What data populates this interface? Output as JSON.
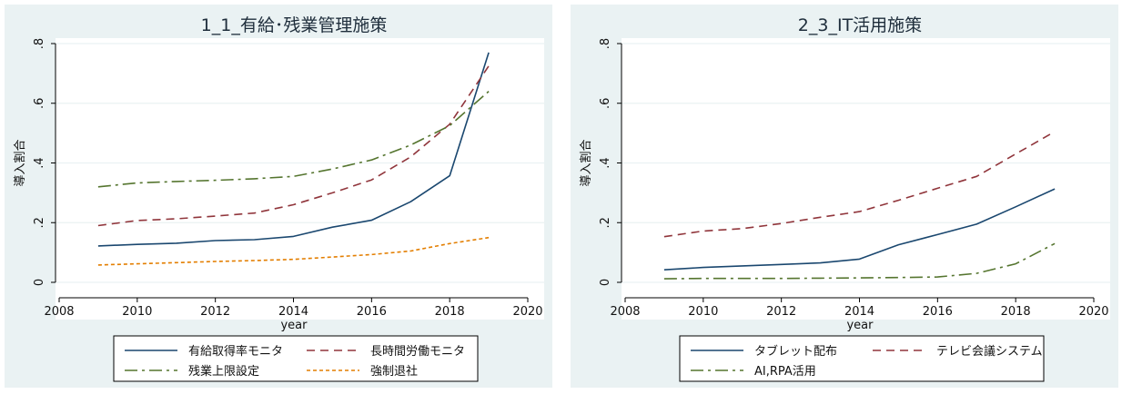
{
  "chart_data": [
    {
      "type": "line",
      "title": "1_1_有給･残業管理施策",
      "xlabel": "year",
      "ylabel": "導入割合",
      "xlim": [
        2008,
        2020
      ],
      "ylim": [
        0,
        0.8
      ],
      "xticks": [
        2008,
        2010,
        2012,
        2014,
        2016,
        2018,
        2020
      ],
      "yticks": [
        0,
        0.2,
        0.4,
        0.6,
        0.8
      ],
      "ytick_labels": [
        "0",
        ".2",
        ".4",
        ".6",
        ".8"
      ],
      "grid": true,
      "legend_position": "bottom",
      "x": [
        2009,
        2010,
        2011,
        2012,
        2013,
        2014,
        2015,
        2016,
        2017,
        2018,
        2019
      ],
      "series": [
        {
          "name": "有給取得率モニタ",
          "color": "#1a476f",
          "dash": "solid",
          "values": [
            0.122,
            0.127,
            0.131,
            0.14,
            0.143,
            0.154,
            0.185,
            0.208,
            0.27,
            0.357,
            0.77
          ]
        },
        {
          "name": "長時間労働モニタ",
          "color": "#90353b",
          "dash": "dashed",
          "values": [
            0.19,
            0.207,
            0.213,
            0.222,
            0.232,
            0.26,
            0.3,
            0.343,
            0.42,
            0.53,
            0.725
          ]
        },
        {
          "name": "残業上限設定",
          "color": "#55752f",
          "dash": "longdashdot",
          "values": [
            0.32,
            0.333,
            0.338,
            0.342,
            0.347,
            0.355,
            0.38,
            0.41,
            0.46,
            0.525,
            0.64
          ]
        },
        {
          "name": "強制退社",
          "color": "#e37e00",
          "dash": "shortdash",
          "values": [
            0.058,
            0.062,
            0.066,
            0.07,
            0.073,
            0.077,
            0.085,
            0.093,
            0.105,
            0.13,
            0.15
          ]
        }
      ]
    },
    {
      "type": "line",
      "title": "2_3_IT活用施策",
      "xlabel": "year",
      "ylabel": "導入割合",
      "xlim": [
        2008,
        2020
      ],
      "ylim": [
        0,
        0.8
      ],
      "xticks": [
        2008,
        2010,
        2012,
        2014,
        2016,
        2018,
        2020
      ],
      "yticks": [
        0,
        0.2,
        0.4,
        0.6,
        0.8
      ],
      "ytick_labels": [
        "0",
        ".2",
        ".4",
        ".6",
        ".8"
      ],
      "grid": true,
      "legend_position": "bottom",
      "x": [
        2009,
        2010,
        2011,
        2012,
        2013,
        2014,
        2015,
        2016,
        2017,
        2018,
        2019
      ],
      "series": [
        {
          "name": "タブレット配布",
          "color": "#1a476f",
          "dash": "solid",
          "values": [
            0.042,
            0.05,
            0.055,
            0.06,
            0.065,
            0.078,
            0.126,
            0.16,
            0.195,
            0.253,
            0.313
          ]
        },
        {
          "name": "テレビ会議システム",
          "color": "#90353b",
          "dash": "dashed",
          "values": [
            0.153,
            0.172,
            0.18,
            0.197,
            0.218,
            0.237,
            0.275,
            0.315,
            0.355,
            0.43,
            0.505
          ]
        },
        {
          "name": "AI,RPA活用",
          "color": "#55752f",
          "dash": "longdashdot",
          "values": [
            0.012,
            0.013,
            0.013,
            0.013,
            0.014,
            0.015,
            0.016,
            0.018,
            0.03,
            0.062,
            0.13
          ]
        }
      ]
    }
  ]
}
